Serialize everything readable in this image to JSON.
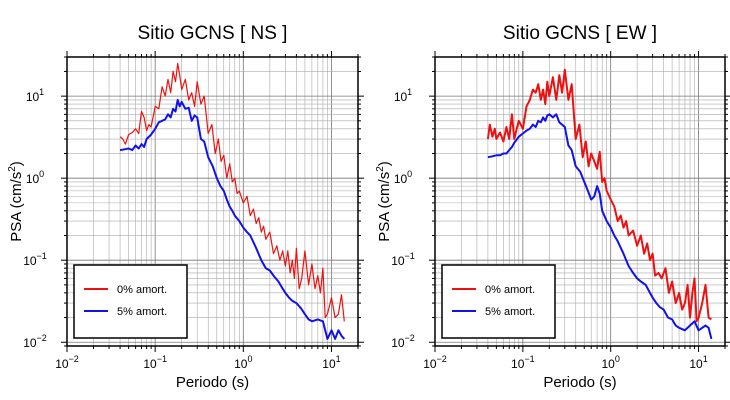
{
  "chart_data": [
    {
      "type": "line",
      "title": "Sitio GCNS [ NS ]",
      "xlabel": "Periodo (s)",
      "ylabel": "PSA (cm/s²)",
      "ylabel_parts": [
        "PSA (cm/s",
        "2",
        ")"
      ],
      "xscale": "log",
      "yscale": "log",
      "xlim": [
        0.01,
        20
      ],
      "ylim": [
        0.009,
        30
      ],
      "xticks": [
        {
          "base": "10",
          "exp": "−2",
          "value": 0.01
        },
        {
          "base": "10",
          "exp": "−1",
          "value": 0.1
        },
        {
          "base": "10",
          "exp": "0",
          "value": 1
        },
        {
          "base": "10",
          "exp": "1",
          "value": 10
        }
      ],
      "yticks": [
        {
          "base": "10",
          "exp": "−2",
          "value": 0.01
        },
        {
          "base": "10",
          "exp": "−1",
          "value": 0.1
        },
        {
          "base": "10",
          "exp": "0",
          "value": 1
        },
        {
          "base": "10",
          "exp": "1",
          "value": 10
        }
      ],
      "grid": true,
      "legend_position": "bottom-left",
      "series": [
        {
          "name": "0% amort.",
          "color": "#ee1111",
          "width": 1.2,
          "x": [
            0.04,
            0.043,
            0.046,
            0.05,
            0.055,
            0.06,
            0.065,
            0.07,
            0.075,
            0.08,
            0.085,
            0.09,
            0.1,
            0.11,
            0.12,
            0.13,
            0.14,
            0.15,
            0.16,
            0.17,
            0.18,
            0.19,
            0.2,
            0.22,
            0.24,
            0.26,
            0.28,
            0.3,
            0.33,
            0.36,
            0.4,
            0.44,
            0.48,
            0.52,
            0.56,
            0.6,
            0.65,
            0.7,
            0.75,
            0.8,
            0.85,
            0.9,
            1.0,
            1.1,
            1.2,
            1.3,
            1.4,
            1.5,
            1.6,
            1.7,
            1.8,
            2.0,
            2.2,
            2.4,
            2.6,
            2.8,
            3.0,
            3.2,
            3.4,
            3.6,
            3.8,
            4.0,
            4.3,
            4.6,
            5.0,
            5.5,
            6.0,
            6.5,
            7.0,
            7.5,
            8.0,
            8.5,
            9.0,
            10,
            11,
            12,
            13,
            14
          ],
          "y": [
            3.2,
            3.0,
            2.6,
            3.4,
            3.6,
            4.0,
            3.5,
            6.5,
            5.5,
            3.8,
            4.5,
            4.2,
            7.5,
            7.0,
            13,
            10,
            16,
            11,
            20,
            15,
            25,
            18,
            12,
            16,
            9,
            11,
            7.5,
            15,
            8,
            10,
            3.5,
            4.5,
            2.0,
            3.0,
            1.6,
            1.9,
            1.0,
            1.5,
            0.9,
            1.0,
            0.65,
            0.7,
            0.5,
            0.6,
            0.35,
            0.42,
            0.28,
            0.33,
            0.22,
            0.26,
            0.18,
            0.22,
            0.12,
            0.15,
            0.1,
            0.13,
            0.085,
            0.13,
            0.07,
            0.1,
            0.06,
            0.14,
            0.045,
            0.06,
            0.13,
            0.05,
            0.09,
            0.045,
            0.065,
            0.04,
            0.08,
            0.02,
            0.022,
            0.035,
            0.02,
            0.022,
            0.038,
            0.018
          ]
        },
        {
          "name": "5% amort.",
          "color": "#1111ee",
          "width": 2.0,
          "x": [
            0.04,
            0.045,
            0.05,
            0.055,
            0.06,
            0.065,
            0.07,
            0.075,
            0.08,
            0.09,
            0.1,
            0.11,
            0.12,
            0.13,
            0.14,
            0.15,
            0.16,
            0.17,
            0.18,
            0.19,
            0.2,
            0.22,
            0.24,
            0.26,
            0.28,
            0.3,
            0.33,
            0.36,
            0.4,
            0.45,
            0.5,
            0.55,
            0.6,
            0.65,
            0.7,
            0.75,
            0.8,
            0.9,
            1.0,
            1.1,
            1.2,
            1.4,
            1.6,
            1.8,
            2.0,
            2.2,
            2.5,
            2.8,
            3.0,
            3.3,
            3.6,
            4.0,
            4.5,
            5.0,
            5.5,
            6.0,
            7.0,
            8.0,
            8.5,
            9.0,
            10,
            11,
            12,
            13,
            14
          ],
          "y": [
            2.2,
            2.25,
            2.3,
            2.2,
            2.5,
            2.3,
            2.6,
            2.4,
            3.0,
            3.4,
            4.0,
            4.8,
            5.0,
            5.2,
            6.0,
            5.5,
            7.0,
            6.5,
            9.0,
            7.5,
            8.5,
            7.0,
            7.2,
            5.0,
            5.8,
            5.5,
            3.0,
            2.8,
            1.8,
            1.4,
            1.0,
            0.8,
            0.7,
            0.55,
            0.45,
            0.4,
            0.35,
            0.3,
            0.25,
            0.22,
            0.2,
            0.14,
            0.1,
            0.08,
            0.075,
            0.065,
            0.055,
            0.045,
            0.04,
            0.035,
            0.032,
            0.03,
            0.026,
            0.022,
            0.019,
            0.018,
            0.019,
            0.018,
            0.014,
            0.011,
            0.014,
            0.011,
            0.014,
            0.012,
            0.011
          ]
        }
      ]
    },
    {
      "type": "line",
      "title": "Sitio GCNS [ EW ]",
      "xlabel": "Periodo (s)",
      "ylabel": "PSA (cm/s²)",
      "ylabel_parts": [
        "PSA (cm/s",
        "2",
        ")"
      ],
      "xscale": "log",
      "yscale": "log",
      "xlim": [
        0.01,
        20
      ],
      "ylim": [
        0.009,
        30
      ],
      "xticks": [
        {
          "base": "10",
          "exp": "−2",
          "value": 0.01
        },
        {
          "base": "10",
          "exp": "−1",
          "value": 0.1
        },
        {
          "base": "10",
          "exp": "0",
          "value": 1
        },
        {
          "base": "10",
          "exp": "1",
          "value": 10
        }
      ],
      "yticks": [
        {
          "base": "10",
          "exp": "−2",
          "value": 0.01
        },
        {
          "base": "10",
          "exp": "−1",
          "value": 0.1
        },
        {
          "base": "10",
          "exp": "0",
          "value": 1
        },
        {
          "base": "10",
          "exp": "1",
          "value": 10
        }
      ],
      "grid": true,
      "legend_position": "bottom-left",
      "series": [
        {
          "name": "0% amort.",
          "color": "#ee1111",
          "width": 2.0,
          "x": [
            0.04,
            0.042,
            0.045,
            0.048,
            0.05,
            0.055,
            0.06,
            0.065,
            0.07,
            0.075,
            0.08,
            0.085,
            0.09,
            0.1,
            0.11,
            0.12,
            0.13,
            0.14,
            0.15,
            0.16,
            0.17,
            0.18,
            0.19,
            0.2,
            0.22,
            0.24,
            0.26,
            0.28,
            0.3,
            0.33,
            0.36,
            0.4,
            0.44,
            0.48,
            0.52,
            0.56,
            0.6,
            0.65,
            0.7,
            0.75,
            0.8,
            0.85,
            0.9,
            1.0,
            1.1,
            1.2,
            1.3,
            1.4,
            1.5,
            1.6,
            1.8,
            2.0,
            2.2,
            2.4,
            2.6,
            2.8,
            3.0,
            3.2,
            3.5,
            3.8,
            4.2,
            4.6,
            5.0,
            5.5,
            6.0,
            6.5,
            7.0,
            7.5,
            8.0,
            8.5,
            9.0,
            9.5,
            10,
            11,
            12,
            13,
            14
          ],
          "y": [
            3.0,
            4.5,
            3.2,
            4.0,
            3.0,
            3.6,
            2.8,
            4.2,
            3.0,
            6.0,
            3.0,
            4.0,
            5.0,
            4.0,
            7.5,
            9.0,
            12,
            11,
            14,
            9.0,
            12,
            8.0,
            15,
            10,
            17,
            9.0,
            18,
            11,
            21,
            9.0,
            14,
            3.0,
            4.5,
            1.8,
            2.8,
            1.4,
            2.0,
            1.6,
            1.3,
            2.1,
            0.9,
            1.0,
            0.7,
            0.55,
            0.45,
            0.3,
            0.35,
            0.25,
            0.3,
            0.2,
            0.23,
            0.15,
            0.2,
            0.12,
            0.16,
            0.1,
            0.12,
            0.065,
            0.07,
            0.06,
            0.08,
            0.04,
            0.055,
            0.03,
            0.04,
            0.025,
            0.03,
            0.05,
            0.02,
            0.04,
            0.06,
            0.018,
            0.02,
            0.03,
            0.05,
            0.02,
            0.019
          ]
        },
        {
          "name": "5% amort.",
          "color": "#1111ee",
          "width": 2.0,
          "x": [
            0.04,
            0.045,
            0.05,
            0.055,
            0.06,
            0.065,
            0.07,
            0.075,
            0.08,
            0.09,
            0.1,
            0.11,
            0.12,
            0.13,
            0.14,
            0.15,
            0.16,
            0.17,
            0.18,
            0.19,
            0.2,
            0.22,
            0.24,
            0.26,
            0.28,
            0.3,
            0.33,
            0.36,
            0.4,
            0.45,
            0.5,
            0.55,
            0.6,
            0.65,
            0.7,
            0.75,
            0.8,
            0.9,
            1.0,
            1.1,
            1.2,
            1.4,
            1.6,
            1.8,
            2.0,
            2.2,
            2.5,
            2.8,
            3.0,
            3.3,
            3.6,
            4.0,
            4.5,
            5.0,
            5.5,
            6.0,
            7.0,
            8.0,
            9.0,
            10,
            11,
            12,
            13,
            14
          ],
          "y": [
            1.8,
            1.85,
            1.9,
            1.9,
            2.0,
            2.0,
            2.2,
            2.4,
            2.7,
            3.2,
            3.5,
            3.8,
            4.0,
            4.5,
            4.2,
            5.0,
            4.8,
            5.5,
            5.0,
            5.8,
            6.0,
            5.5,
            6.0,
            4.8,
            4.5,
            4.2,
            2.5,
            2.2,
            1.4,
            1.2,
            0.9,
            0.7,
            0.55,
            0.6,
            0.8,
            0.65,
            0.4,
            0.3,
            0.25,
            0.2,
            0.17,
            0.12,
            0.085,
            0.07,
            0.06,
            0.055,
            0.05,
            0.04,
            0.035,
            0.03,
            0.027,
            0.025,
            0.02,
            0.019,
            0.016,
            0.015,
            0.014,
            0.016,
            0.018,
            0.014,
            0.015,
            0.016,
            0.015,
            0.011
          ]
        }
      ]
    }
  ]
}
